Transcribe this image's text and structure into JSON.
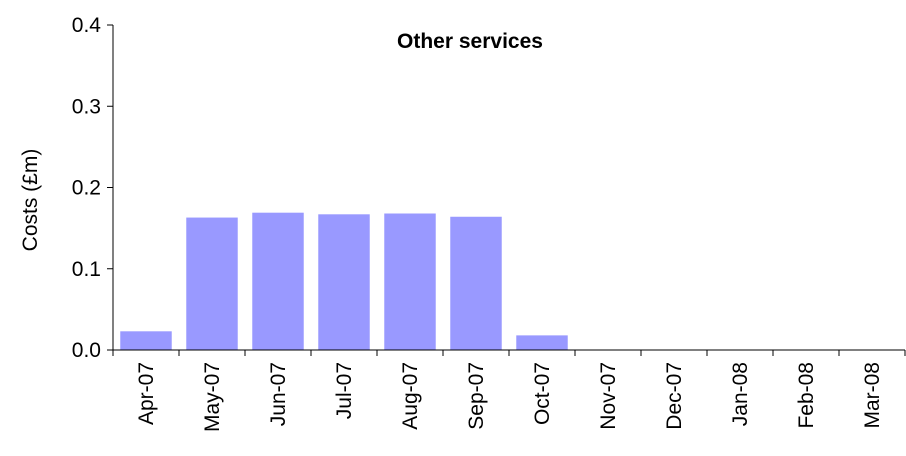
{
  "chart_data": {
    "type": "bar",
    "title": "Other services",
    "ylabel": "Costs (£m)",
    "xlabel": "",
    "ylim": [
      0,
      0.4
    ],
    "yticks": [
      "0.0",
      "0.1",
      "0.2",
      "0.3",
      "0.4"
    ],
    "categories": [
      "Apr-07",
      "May-07",
      "Jun-07",
      "Jul-07",
      "Aug-07",
      "Sep-07",
      "Oct-07",
      "Nov-07",
      "Dec-07",
      "Jan-08",
      "Feb-08",
      "Mar-08"
    ],
    "values": [
      0.023,
      0.163,
      0.169,
      0.167,
      0.168,
      0.164,
      0.018,
      0,
      0,
      0,
      0,
      0
    ],
    "bar_color": "#9999ff",
    "grid": false,
    "legend": "none"
  }
}
